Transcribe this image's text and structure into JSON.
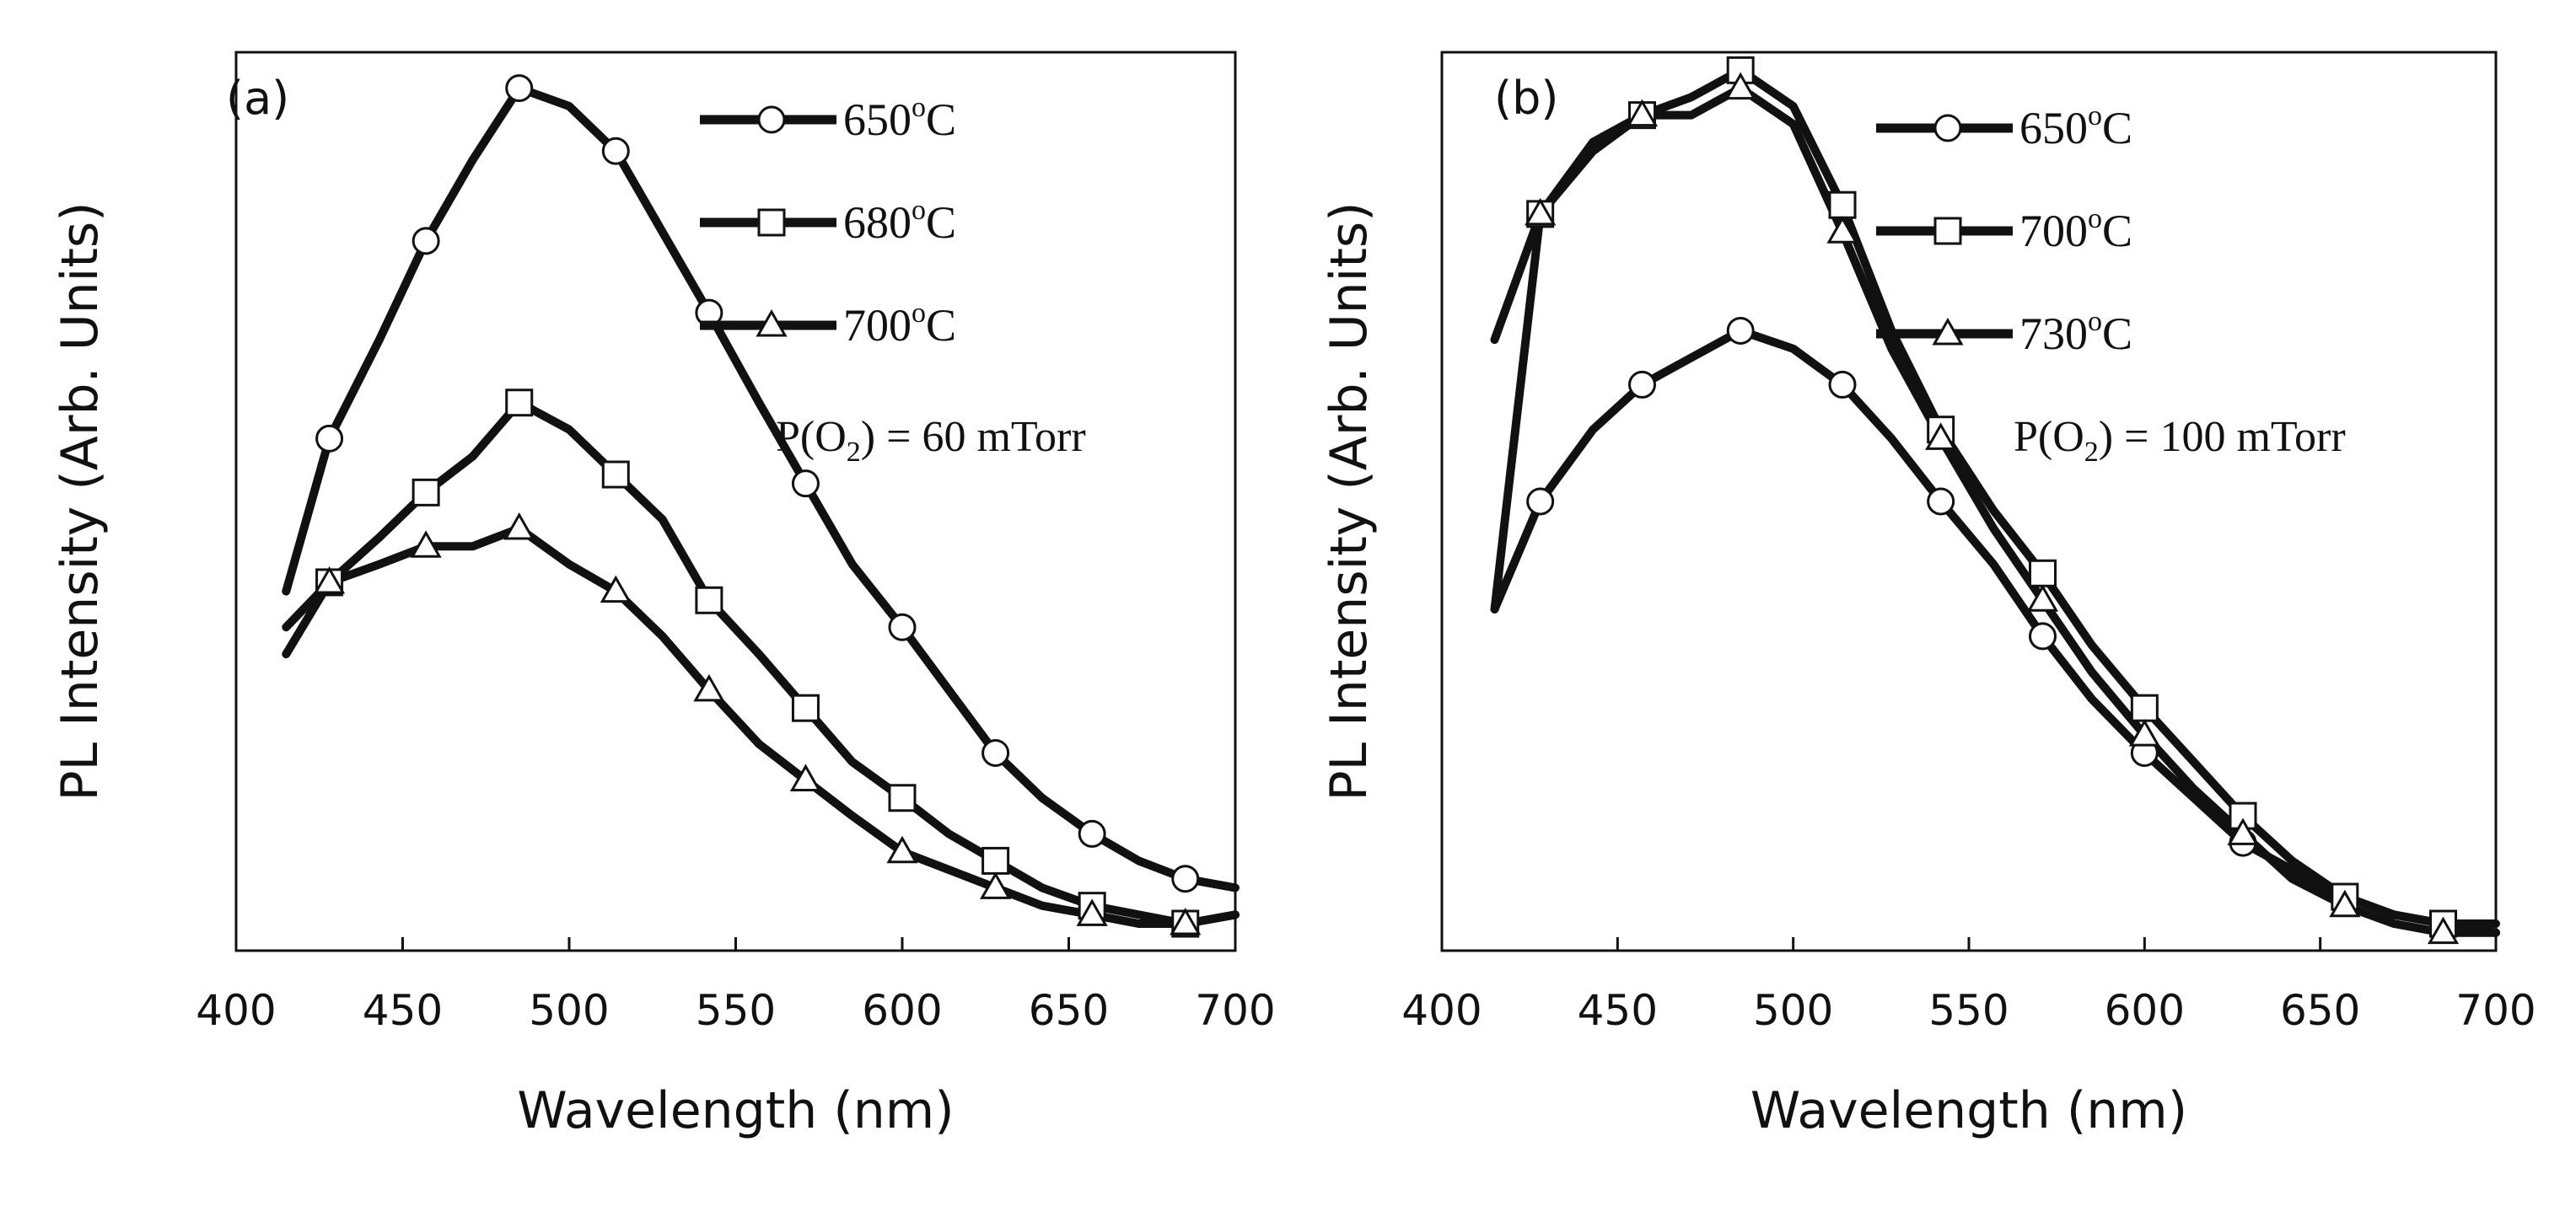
{
  "chart_data": [
    {
      "type": "line",
      "panel_label": "(a)",
      "xlabel": "Wavelength (nm)",
      "ylabel": "PL Intensity (Arb. Units)",
      "xlim": [
        400,
        700
      ],
      "ylim": [
        0,
        100
      ],
      "xticks": [
        400,
        450,
        500,
        550,
        600,
        650,
        700
      ],
      "yticks_shown": false,
      "grid": false,
      "legend_position": "top-right",
      "annotation": {
        "prefix": "P(O",
        "subscript": "2",
        "suffix": ") = 60 mTorr"
      },
      "series": [
        {
          "name": "650°C",
          "temp": "650",
          "unit": "C",
          "marker": "circle",
          "x": [
            415,
            428,
            443,
            457,
            471,
            485,
            500,
            514,
            528,
            542,
            557,
            571,
            585,
            600,
            614,
            628,
            642,
            657,
            671,
            685,
            700
          ],
          "y": [
            40,
            57,
            68,
            79,
            88,
            96,
            94,
            89,
            80,
            71,
            61,
            52,
            43,
            36,
            29,
            22,
            17,
            13,
            10,
            8,
            7
          ]
        },
        {
          "name": "680°C",
          "temp": "680",
          "unit": "C",
          "marker": "square",
          "x": [
            415,
            428,
            443,
            457,
            471,
            485,
            500,
            514,
            528,
            542,
            557,
            571,
            585,
            600,
            614,
            628,
            642,
            657,
            671,
            685,
            700
          ],
          "y": [
            36,
            41,
            46,
            51,
            55,
            61,
            58,
            53,
            48,
            39,
            33,
            27,
            21,
            17,
            13,
            10,
            7,
            5,
            4,
            3,
            4
          ]
        },
        {
          "name": "700°C",
          "temp": "700",
          "unit": "C",
          "marker": "triangle",
          "x": [
            415,
            428,
            443,
            457,
            471,
            485,
            500,
            514,
            528,
            542,
            557,
            571,
            585,
            600,
            614,
            628,
            642,
            657,
            671,
            685,
            700
          ],
          "y": [
            33,
            41,
            43,
            45,
            45,
            47,
            43,
            40,
            35,
            29,
            23,
            19,
            15,
            11,
            9,
            7,
            5,
            4,
            3,
            3,
            4
          ]
        }
      ]
    },
    {
      "type": "line",
      "panel_label": "(b)",
      "xlabel": "Wavelength (nm)",
      "ylabel": "PL Intensity (Arb. Units)",
      "xlim": [
        400,
        700
      ],
      "ylim": [
        0,
        100
      ],
      "xticks": [
        400,
        450,
        500,
        550,
        600,
        650,
        700
      ],
      "yticks_shown": false,
      "grid": false,
      "legend_position": "top-right",
      "annotation": {
        "prefix": "P(O",
        "subscript": "2",
        "suffix": ") = 100 mTorr"
      },
      "series": [
        {
          "name": "650°C",
          "temp": "650",
          "unit": "C",
          "marker": "circle",
          "x": [
            415,
            428,
            443,
            457,
            471,
            485,
            500,
            514,
            528,
            542,
            557,
            571,
            585,
            600,
            614,
            628,
            642,
            657,
            671,
            685,
            700
          ],
          "y": [
            38,
            50,
            58,
            63,
            66,
            69,
            67,
            63,
            57,
            50,
            43,
            35,
            28,
            22,
            17,
            12,
            9,
            6,
            4,
            3,
            2
          ]
        },
        {
          "name": "700°C",
          "temp": "700",
          "unit": "C",
          "marker": "square",
          "x": [
            415,
            428,
            443,
            457,
            471,
            485,
            500,
            514,
            528,
            542,
            557,
            571,
            585,
            600,
            614,
            628,
            642,
            657,
            671,
            685,
            700
          ],
          "y": [
            68,
            82,
            90,
            93,
            95,
            98,
            94,
            83,
            69,
            58,
            49,
            42,
            34,
            27,
            21,
            15,
            10,
            6,
            4,
            3,
            3
          ]
        },
        {
          "name": "730°C",
          "temp": "730",
          "unit": "C",
          "marker": "triangle",
          "x": [
            415,
            428,
            443,
            457,
            471,
            485,
            500,
            514,
            528,
            542,
            557,
            571,
            585,
            600,
            614,
            628,
            642,
            657,
            671,
            685,
            700
          ],
          "y": [
            38,
            82,
            89,
            93,
            93,
            96,
            92,
            80,
            67,
            57,
            47,
            39,
            31,
            24,
            18,
            13,
            8,
            5,
            3,
            2,
            2
          ]
        }
      ]
    }
  ]
}
